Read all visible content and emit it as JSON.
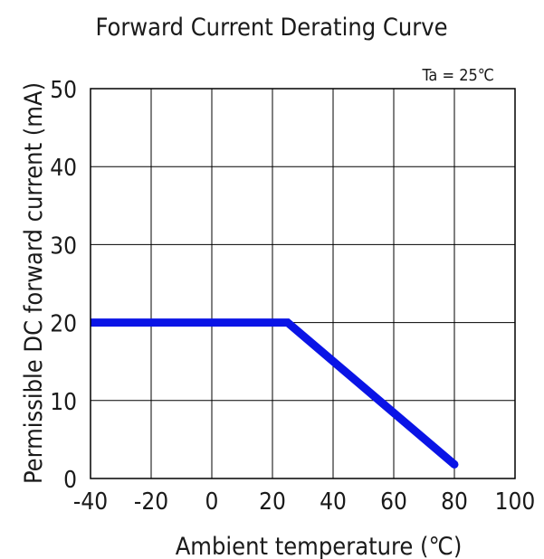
{
  "chart_data": {
    "type": "line",
    "title": "Forward Current Derating Curve",
    "annotation": "Ta = 25℃",
    "xlabel": "Ambient temperature (℃)",
    "ylabel": "Permissible DC forward current (mA)",
    "xlim": [
      -40,
      100
    ],
    "ylim": [
      0,
      50
    ],
    "xticks": [
      -40,
      -20,
      0,
      20,
      40,
      60,
      80,
      100
    ],
    "yticks": [
      0,
      10,
      20,
      30,
      40,
      50
    ],
    "xtick_labels": [
      "-40",
      "-20",
      "0",
      "20",
      "40",
      "60",
      "80",
      "100"
    ],
    "ytick_labels": [
      "0",
      "10",
      "20",
      "30",
      "40",
      "50"
    ],
    "grid": true,
    "series": [
      {
        "color": "#0a14e6",
        "x": [
          -40,
          25,
          80
        ],
        "y": [
          20,
          20,
          1.8
        ]
      }
    ]
  }
}
